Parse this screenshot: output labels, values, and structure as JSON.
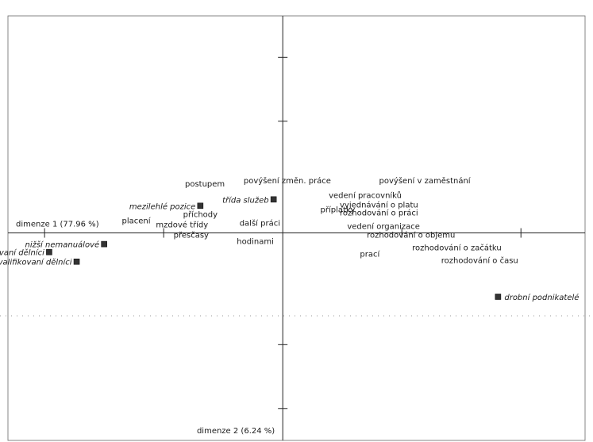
{
  "chart_data": {
    "type": "scatter",
    "axis_labels": {
      "dim1": "dimenze 1 (77.96 %)",
      "dim2": "dimenze 2 (6.24 %)"
    },
    "xlim": [
      -3.0,
      3.3
    ],
    "ylim": [
      -0.65,
      0.68
    ],
    "grid": false,
    "legend": "none",
    "series": [
      {
        "points": [
          {
            "label": "povýšení změn. práce",
            "x": 0.05,
            "y": 0.155
          },
          {
            "label": "povýšení v zaměstnání",
            "x": 1.55,
            "y": 0.155
          },
          {
            "label": "postupem",
            "x": -0.85,
            "y": 0.145
          },
          {
            "label": "vedení pracovníků",
            "x": 0.9,
            "y": 0.11
          },
          {
            "label": "vyjednávání o platu",
            "x": 1.05,
            "y": 0.08
          },
          {
            "label": "rozhodování o práci",
            "x": 1.05,
            "y": 0.055
          },
          {
            "label": "příplatky",
            "x": 0.6,
            "y": 0.065
          },
          {
            "label": "příchody",
            "x": -0.9,
            "y": 0.05
          },
          {
            "label": "placení",
            "x": -1.6,
            "y": 0.03
          },
          {
            "label": "mzdové třídy",
            "x": -1.1,
            "y": 0.018
          },
          {
            "label": "další práci",
            "x": -0.25,
            "y": 0.022
          },
          {
            "label": "vedení organizace",
            "x": 1.1,
            "y": 0.012
          },
          {
            "label": "rozhodování o objemu",
            "x": 1.4,
            "y": -0.015
          },
          {
            "label": "přesčasy",
            "x": -1.0,
            "y": -0.015
          },
          {
            "label": "hodinami",
            "x": -0.3,
            "y": -0.035
          },
          {
            "label": "rozhodování o začátku",
            "x": 1.9,
            "y": -0.055
          },
          {
            "label": "prací",
            "x": 0.95,
            "y": -0.075
          },
          {
            "label": "rozhodování o času",
            "x": 2.15,
            "y": -0.095
          }
        ]
      },
      {
        "points": [
          {
            "label": "třída služeb",
            "x": -0.1,
            "y": 0.105,
            "marker": true
          },
          {
            "label": "mezilehlé pozice",
            "x": -0.9,
            "y": 0.085,
            "marker": true
          },
          {
            "label": "nižší nemanuálové",
            "x": -1.95,
            "y": -0.035,
            "marker": true
          },
          {
            "label": "nekvalifikovaní dělníci",
            "x": -2.55,
            "y": -0.06,
            "marker": true
          },
          {
            "label": "kvalifikovaní dělníci",
            "x": -2.25,
            "y": -0.09,
            "marker": true
          },
          {
            "label": "drobní podnikatelé",
            "x": 2.35,
            "y": -0.2,
            "marker": true
          }
        ]
      }
    ]
  }
}
